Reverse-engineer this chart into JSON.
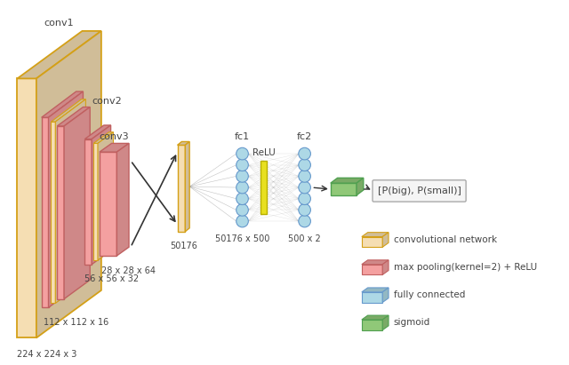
{
  "bg_color": "#ffffff",
  "conv_yellow_face": "#f5deb3",
  "conv_yellow_edge": "#d4a017",
  "conv_pink_face": "#f4a0a0",
  "conv_pink_edge": "#c06060",
  "fc_node_color": "#add8e6",
  "fc_node_edge": "#6699cc",
  "relu_face": "#e8e020",
  "relu_edge": "#b8b000",
  "sigmoid_face": "#90c878",
  "sigmoid_edge": "#50a050",
  "output_box_face": "#f5f5f5",
  "output_box_edge": "#aaaaaa",
  "text_color": "#444444",
  "conn_color": "#888888",
  "arrow_color": "#333333",
  "label_conv1": "conv1",
  "label_conv2": "conv2",
  "label_conv3": "conv3",
  "label_fc1": "fc1",
  "label_fc2": "fc2",
  "label_relu": "ReLU",
  "label_224": "224 x 224 x 3",
  "label_112": "112 x 112 x 16",
  "label_56": "56 x 56 x 32",
  "label_28": "28 x 28 x 64",
  "label_50176": "50176",
  "label_fc1_size": "50176 x 500",
  "label_fc2_size": "500 x 2",
  "label_output": "[P(big), P(small)]",
  "leg_conv_label": "convolutional network",
  "leg_pool_label": "max pooling(kernel=2) + ReLU",
  "leg_fc_label": "fully connected",
  "leg_sig_label": "sigmoid"
}
